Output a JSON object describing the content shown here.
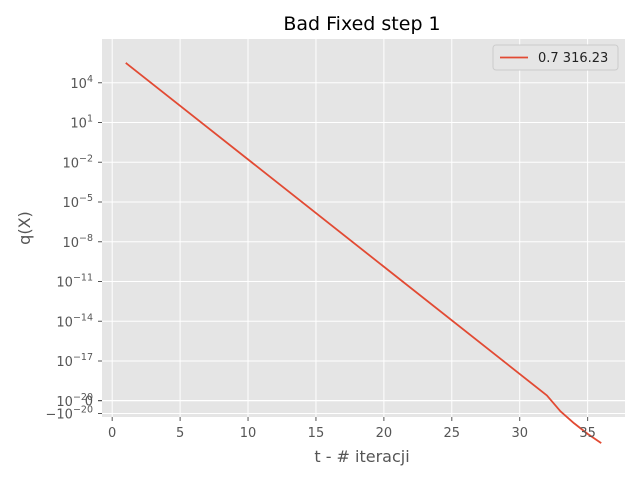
{
  "chart_data": {
    "type": "line",
    "title": "Bad Fixed step 1",
    "xlabel": "t - # iteracji",
    "ylabel": "q(X)",
    "xlim": [
      -0.75,
      37.75
    ],
    "yscale": "symlog",
    "x_ticks": [
      0,
      5,
      10,
      15,
      20,
      25,
      30,
      35
    ],
    "x_tick_labels": [
      "0",
      "5",
      "10",
      "15",
      "20",
      "25",
      "30",
      "35"
    ],
    "y_ticks": [
      {
        "value": 10000.0,
        "base": "10",
        "exp": "4"
      },
      {
        "value": 10.0,
        "base": "10",
        "exp": "1"
      },
      {
        "value": 0.01,
        "base": "10",
        "exp": "−2"
      },
      {
        "value": 1e-05,
        "base": "10",
        "exp": "−5"
      },
      {
        "value": 1e-08,
        "base": "10",
        "exp": "−8"
      },
      {
        "value": 1e-11,
        "base": "10",
        "exp": "−11"
      },
      {
        "value": 1e-14,
        "base": "10",
        "exp": "−14"
      },
      {
        "value": 1e-17,
        "base": "10",
        "exp": "−17"
      },
      {
        "value": 1e-20,
        "base": "10",
        "exp": "−20"
      },
      {
        "value": 0,
        "base": "0",
        "exp": ""
      },
      {
        "value": -1e-20,
        "base": "−10",
        "exp": "−20"
      }
    ],
    "legend": {
      "position": "top-right",
      "entries": [
        "0.7 316.23"
      ]
    },
    "grid": true,
    "series": [
      {
        "name": "0.7 316.23",
        "color": "#E24A33",
        "x": [
          1,
          32,
          33,
          34,
          35,
          36
        ],
        "log10_y": [
          5.5,
          -19.6,
          -20.8,
          -21.7,
          -22.5,
          -23.2
        ],
        "y_approx": [
          316228,
          2.5e-20,
          0,
          0,
          0,
          0
        ]
      }
    ]
  }
}
